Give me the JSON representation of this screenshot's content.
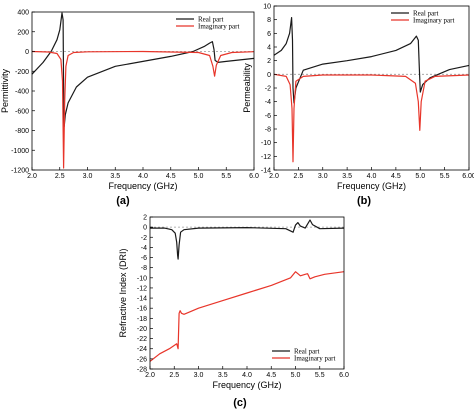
{
  "chart_data": [
    {
      "type": "line",
      "panel_label": "(a)",
      "xlabel": "Frequency (GHz)",
      "ylabel": "Permittivity",
      "xlim": [
        2.0,
        6.0
      ],
      "ylim": [
        -1200,
        400
      ],
      "xticks": [
        "2.0",
        "2.5",
        "3.0",
        "3.5",
        "4.0",
        "4.5",
        "5.0",
        "5.5",
        "6.0"
      ],
      "yticks": [
        "-1200",
        "-1000",
        "-800",
        "-600",
        "-400",
        "-200",
        "0",
        "200",
        "400"
      ],
      "legend_position": "top-right",
      "series": [
        {
          "name": "Real part",
          "color": "#1a1a1a",
          "x": [
            2.0,
            2.2,
            2.35,
            2.45,
            2.5,
            2.54,
            2.56,
            2.57,
            2.58,
            2.6,
            2.65,
            2.8,
            3.0,
            3.5,
            4.0,
            4.5,
            4.9,
            5.1,
            5.2,
            5.25,
            5.28,
            5.3,
            5.35,
            5.5,
            6.0
          ],
          "y": [
            -230,
            -110,
            5,
            120,
            220,
            390,
            320,
            -400,
            -760,
            -640,
            -520,
            -360,
            -260,
            -150,
            -100,
            -50,
            0,
            50,
            85,
            100,
            20,
            -90,
            -110,
            -100,
            -70
          ]
        },
        {
          "name": "Imaginary part",
          "color": "#e8352a",
          "x": [
            2.0,
            2.3,
            2.45,
            2.52,
            2.55,
            2.57,
            2.59,
            2.61,
            2.65,
            2.75,
            3.0,
            4.0,
            5.0,
            5.2,
            5.26,
            5.29,
            5.32,
            5.4,
            5.6,
            6.0
          ],
          "y": [
            0,
            -5,
            -20,
            -80,
            -300,
            -1180,
            -500,
            -150,
            -40,
            -10,
            -3,
            0,
            -10,
            -40,
            -150,
            -250,
            -140,
            -40,
            -10,
            -2
          ]
        }
      ]
    },
    {
      "type": "line",
      "panel_label": "(b)",
      "xlabel": "Frequency (GHz)",
      "ylabel": "Permeability",
      "xlim": [
        2.0,
        6.0
      ],
      "ylim": [
        -14,
        10
      ],
      "xticks": [
        "2.0",
        "2.5",
        "3.0",
        "3.5",
        "4.0",
        "4.5",
        "5.0",
        "5.5",
        "6.00"
      ],
      "yticks": [
        "-14",
        "-12",
        "-10",
        "-8",
        "-6",
        "-4",
        "-2",
        "0",
        "2",
        "4",
        "6",
        "8",
        "10"
      ],
      "legend_position": "top-right",
      "series": [
        {
          "name": "Real part",
          "color": "#1a1a1a",
          "x": [
            2.0,
            2.15,
            2.25,
            2.32,
            2.36,
            2.38,
            2.39,
            2.41,
            2.45,
            2.6,
            3.0,
            3.5,
            4.0,
            4.5,
            4.8,
            4.92,
            4.96,
            4.98,
            5.0,
            5.05,
            5.2,
            5.6,
            6.0
          ],
          "y": [
            2.8,
            3.5,
            4.5,
            6.0,
            8.3,
            5.0,
            -2.0,
            -4.2,
            -2.0,
            0.6,
            1.5,
            2.0,
            2.6,
            3.5,
            4.5,
            5.6,
            5.0,
            1.0,
            -2.6,
            -1.5,
            -0.5,
            0.7,
            1.3
          ]
        },
        {
          "name": "Imaginary part",
          "color": "#e8352a",
          "x": [
            2.0,
            2.25,
            2.33,
            2.37,
            2.39,
            2.41,
            2.45,
            2.6,
            3.0,
            4.0,
            4.7,
            4.9,
            4.96,
            4.99,
            5.02,
            5.1,
            5.3,
            6.0
          ],
          "y": [
            0,
            -0.3,
            -1.5,
            -5.0,
            -12.8,
            -5.0,
            -1.0,
            -0.3,
            -0.1,
            -0.1,
            -0.3,
            -1.3,
            -4.0,
            -8.2,
            -4.0,
            -1.0,
            -0.3,
            -0.1
          ]
        }
      ]
    },
    {
      "type": "line",
      "panel_label": "(c)",
      "xlabel": "Frequency (GHz)",
      "ylabel": "Refractive Index (DRI)",
      "xlim": [
        2.0,
        6.0
      ],
      "ylim": [
        -28,
        2
      ],
      "xticks": [
        "2.0",
        "2.5",
        "3.0",
        "3.5",
        "4.0",
        "4.5",
        "5.0",
        "5.5",
        "6.0"
      ],
      "yticks": [
        "-28",
        "-26",
        "-24",
        "-22",
        "-20",
        "-18",
        "-16",
        "-14",
        "-12",
        "-10",
        "-8",
        "-6",
        "-4",
        "-2",
        "0",
        "2"
      ],
      "legend_position": "bottom-right",
      "series": [
        {
          "name": "Real part",
          "color": "#1a1a1a",
          "x": [
            2.0,
            2.3,
            2.45,
            2.52,
            2.55,
            2.57,
            2.58,
            2.6,
            2.63,
            2.7,
            3.0,
            4.0,
            4.8,
            4.95,
            5.0,
            5.05,
            5.1,
            5.2,
            5.25,
            5.3,
            5.35,
            5.5,
            6.0
          ],
          "y": [
            -0.2,
            -0.2,
            -0.5,
            -1.2,
            -3.0,
            -5.5,
            -6.3,
            -3.5,
            -1.0,
            -0.5,
            -0.2,
            -0.1,
            -0.3,
            -1.0,
            0.4,
            0.9,
            0.2,
            -0.2,
            0.6,
            1.4,
            0.5,
            -0.3,
            -0.2
          ]
        },
        {
          "name": "Imaginary part",
          "color": "#e8352a",
          "x": [
            2.0,
            2.2,
            2.4,
            2.55,
            2.58,
            2.6,
            2.62,
            2.65,
            2.7,
            2.8,
            3.0,
            3.5,
            4.0,
            4.5,
            4.9,
            5.0,
            5.05,
            5.1,
            5.2,
            5.25,
            5.3,
            5.4,
            5.6,
            6.0
          ],
          "y": [
            -26.5,
            -25.0,
            -24.0,
            -23.0,
            -24.0,
            -17.0,
            -16.5,
            -17.0,
            -17.2,
            -16.8,
            -16.0,
            -14.5,
            -13.0,
            -11.5,
            -10.0,
            -8.8,
            -9.2,
            -9.6,
            -9.3,
            -9.2,
            -10.2,
            -9.8,
            -9.3,
            -8.8
          ]
        }
      ]
    }
  ]
}
